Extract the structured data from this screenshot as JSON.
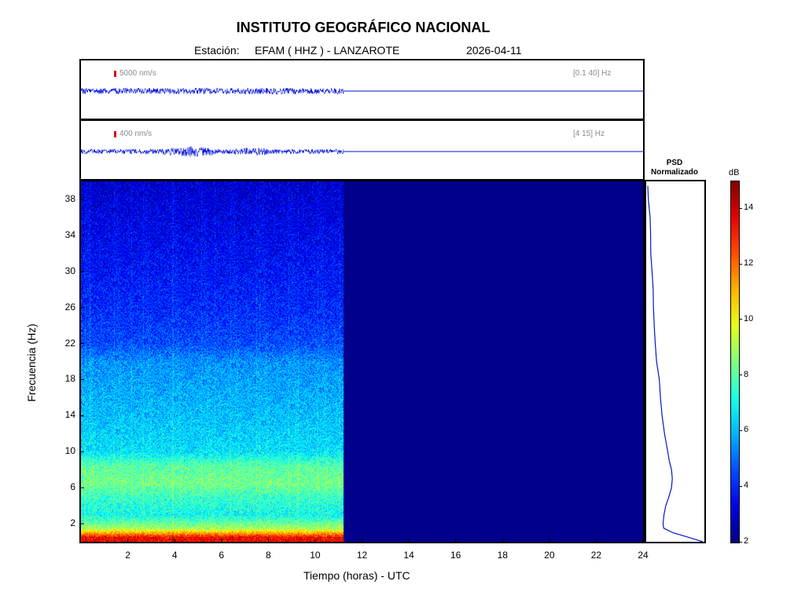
{
  "header": {
    "title": "INSTITUTO GEOGRÁFICO NACIONAL",
    "station_prefix": "Estación:",
    "station": "EFAM ( HHZ ) - LANZAROTE",
    "date": "2026-04-11"
  },
  "traces": [
    {
      "scale_label": "5000 nm/s",
      "band_label": "[0.1 40] Hz"
    },
    {
      "scale_label": "400 nm/s",
      "band_label": "[4 15] Hz"
    }
  ],
  "psd_title": [
    "PSD",
    "Normalizado"
  ],
  "colors": {
    "no_data": "#00008c",
    "trace": "#0010e0",
    "psd_line": "#0018c8"
  },
  "chart_data": {
    "type": "heatmap",
    "xlabel": "Tiempo (horas) - UTC",
    "ylabel": "Frecuencia  (Hz)",
    "xlim": [
      0,
      24
    ],
    "ylim": [
      0,
      40
    ],
    "x_ticks": [
      2,
      4,
      6,
      8,
      10,
      12,
      14,
      16,
      18,
      20,
      22,
      24
    ],
    "y_ticks": [
      2,
      6,
      10,
      14,
      18,
      22,
      26,
      30,
      34,
      38
    ],
    "data_end_hour": 11.2,
    "colorbar": {
      "label": "dB",
      "min": 2,
      "max": 15,
      "ticks": [
        2,
        4,
        6,
        8,
        10,
        12,
        14
      ]
    },
    "spectrum_profile_db": [
      {
        "freq": 0.5,
        "db": 13.5
      },
      {
        "freq": 1.5,
        "db": 9.0
      },
      {
        "freq": 3,
        "db": 7.0
      },
      {
        "freq": 5,
        "db": 7.6
      },
      {
        "freq": 6.5,
        "db": 8.4
      },
      {
        "freq": 8.5,
        "db": 8.0
      },
      {
        "freq": 10,
        "db": 6.6
      },
      {
        "freq": 14,
        "db": 6.1
      },
      {
        "freq": 18,
        "db": 5.7
      },
      {
        "freq": 20,
        "db": 5.5
      },
      {
        "freq": 22,
        "db": 4.6
      },
      {
        "freq": 26,
        "db": 4.1
      },
      {
        "freq": 30,
        "db": 3.8
      },
      {
        "freq": 34,
        "db": 3.5
      },
      {
        "freq": 38,
        "db": 3.2
      },
      {
        "freq": 40,
        "db": 3.0
      }
    ],
    "psd_normalized": [
      {
        "freq": 0.0,
        "value": 1.0
      },
      {
        "freq": 0.5,
        "value": 0.75
      },
      {
        "freq": 1.0,
        "value": 0.45
      },
      {
        "freq": 1.5,
        "value": 0.3
      },
      {
        "freq": 2.0,
        "value": 0.28
      },
      {
        "freq": 3.0,
        "value": 0.3
      },
      {
        "freq": 4.0,
        "value": 0.33
      },
      {
        "freq": 5.0,
        "value": 0.38
      },
      {
        "freq": 6.0,
        "value": 0.43
      },
      {
        "freq": 7.0,
        "value": 0.45
      },
      {
        "freq": 8.0,
        "value": 0.44
      },
      {
        "freq": 9.0,
        "value": 0.4
      },
      {
        "freq": 10.0,
        "value": 0.36
      },
      {
        "freq": 12.0,
        "value": 0.3
      },
      {
        "freq": 14.0,
        "value": 0.26
      },
      {
        "freq": 16.0,
        "value": 0.23
      },
      {
        "freq": 18.0,
        "value": 0.2
      },
      {
        "freq": 20.0,
        "value": 0.17
      },
      {
        "freq": 22.0,
        "value": 0.14
      },
      {
        "freq": 24.0,
        "value": 0.12
      },
      {
        "freq": 26.0,
        "value": 0.1
      },
      {
        "freq": 28.0,
        "value": 0.09
      },
      {
        "freq": 30.0,
        "value": 0.07
      },
      {
        "freq": 32.0,
        "value": 0.06
      },
      {
        "freq": 34.0,
        "value": 0.05
      },
      {
        "freq": 36.0,
        "value": 0.04
      },
      {
        "freq": 38.0,
        "value": 0.02
      },
      {
        "freq": 39.5,
        "value": 0.0
      }
    ]
  }
}
